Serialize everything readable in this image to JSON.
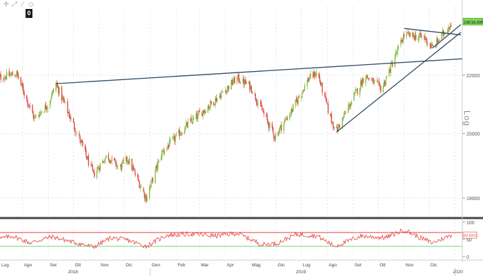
{
  "toolbar": {
    "icons": [
      "crosshair-icon",
      "zoom-icon",
      "draw-icon",
      "eraser-icon"
    ],
    "badge": "0"
  },
  "colors": {
    "up_candle": "#7fbf3f",
    "down_candle": "#e0443e",
    "trendline": "#2c4a63",
    "rsi_line": "#e0443e",
    "rsi_upper_band": "#e83a3a",
    "rsi_lower_band": "#6fd36f",
    "grid": "#dfe3e8",
    "price_tag": "#7ed957"
  },
  "chart_data": [
    {
      "type": "candlestick",
      "scale": "log",
      "scale_label": "Log",
      "ylim": [
        17500,
        24600
      ],
      "yticks": [
        "22000",
        "20000",
        "18000"
      ],
      "x_months": [
        "Lug",
        "Ago",
        "Set",
        "Ott",
        "Nov",
        "Dic",
        "Gen",
        "Feb",
        "Mar",
        "Apr",
        "Mag",
        "Giu",
        "Lug",
        "Ago",
        "Set",
        "Ott",
        "Nov",
        "Dic"
      ],
      "x_years": [
        "2018",
        "2019",
        "2020"
      ],
      "last_price": "24016.6992",
      "price_path": [
        {
          "x": "2018-07-01",
          "y": 21900
        },
        {
          "x": "2018-07-25",
          "y": 22050
        },
        {
          "x": "2018-08-15",
          "y": 20500
        },
        {
          "x": "2018-09-01",
          "y": 21000
        },
        {
          "x": "2018-09-10",
          "y": 21700
        },
        {
          "x": "2018-10-10",
          "y": 19700
        },
        {
          "x": "2018-10-25",
          "y": 18700
        },
        {
          "x": "2018-11-10",
          "y": 19300
        },
        {
          "x": "2018-11-25",
          "y": 18900
        },
        {
          "x": "2018-12-05",
          "y": 19200
        },
        {
          "x": "2018-12-27",
          "y": 18000
        },
        {
          "x": "2019-01-15",
          "y": 19400
        },
        {
          "x": "2019-02-15",
          "y": 20300
        },
        {
          "x": "2019-03-15",
          "y": 21000
        },
        {
          "x": "2019-04-15",
          "y": 21900
        },
        {
          "x": "2019-05-01",
          "y": 21600
        },
        {
          "x": "2019-05-30",
          "y": 19900
        },
        {
          "x": "2019-06-20",
          "y": 20800
        },
        {
          "x": "2019-07-10",
          "y": 21900
        },
        {
          "x": "2019-07-20",
          "y": 22100
        },
        {
          "x": "2019-08-05",
          "y": 20500
        },
        {
          "x": "2019-08-12",
          "y": 20100
        },
        {
          "x": "2019-09-15",
          "y": 22000
        },
        {
          "x": "2019-10-05",
          "y": 21500
        },
        {
          "x": "2019-10-20",
          "y": 22600
        },
        {
          "x": "2019-11-01",
          "y": 23500
        },
        {
          "x": "2019-11-25",
          "y": 23400
        },
        {
          "x": "2019-12-05",
          "y": 23000
        },
        {
          "x": "2019-12-28",
          "y": 24000
        }
      ],
      "trendlines": [
        {
          "from": {
            "x": "2018-09-10",
            "y": 21700
          },
          "to": {
            "x": "2020-01-10",
            "y": 22600
          }
        },
        {
          "from": {
            "x": "2019-08-12",
            "y": 20050
          },
          "to": {
            "x": "2020-01-08",
            "y": 23600
          }
        },
        {
          "from": {
            "x": "2019-11-01",
            "y": 23750
          },
          "to": {
            "x": "2020-01-08",
            "y": 23500
          }
        },
        {
          "from": {
            "x": "2019-12-05",
            "y": 23000
          },
          "to": {
            "x": "2020-01-08",
            "y": 23900
          }
        }
      ]
    },
    {
      "type": "line",
      "name_hidden": true,
      "ylim": [
        0,
        100
      ],
      "yticks": [
        "100",
        "50",
        "0"
      ],
      "bands": [
        70,
        30
      ],
      "last_value": "62.6511",
      "path": [
        {
          "x": "2018-07-01",
          "y": 50
        },
        {
          "x": "2018-07-20",
          "y": 60
        },
        {
          "x": "2018-08-10",
          "y": 40
        },
        {
          "x": "2018-09-05",
          "y": 58
        },
        {
          "x": "2018-10-01",
          "y": 42
        },
        {
          "x": "2018-10-25",
          "y": 28
        },
        {
          "x": "2018-11-15",
          "y": 55
        },
        {
          "x": "2018-12-05",
          "y": 48
        },
        {
          "x": "2018-12-27",
          "y": 30
        },
        {
          "x": "2019-01-20",
          "y": 62
        },
        {
          "x": "2019-02-20",
          "y": 66
        },
        {
          "x": "2019-03-20",
          "y": 60
        },
        {
          "x": "2019-04-15",
          "y": 68
        },
        {
          "x": "2019-05-15",
          "y": 35
        },
        {
          "x": "2019-06-01",
          "y": 38
        },
        {
          "x": "2019-06-25",
          "y": 65
        },
        {
          "x": "2019-07-20",
          "y": 60
        },
        {
          "x": "2019-08-10",
          "y": 30
        },
        {
          "x": "2019-09-10",
          "y": 60
        },
        {
          "x": "2019-10-10",
          "y": 55
        },
        {
          "x": "2019-11-01",
          "y": 78
        },
        {
          "x": "2019-11-20",
          "y": 55
        },
        {
          "x": "2019-12-05",
          "y": 40
        },
        {
          "x": "2019-12-28",
          "y": 63
        }
      ]
    }
  ]
}
